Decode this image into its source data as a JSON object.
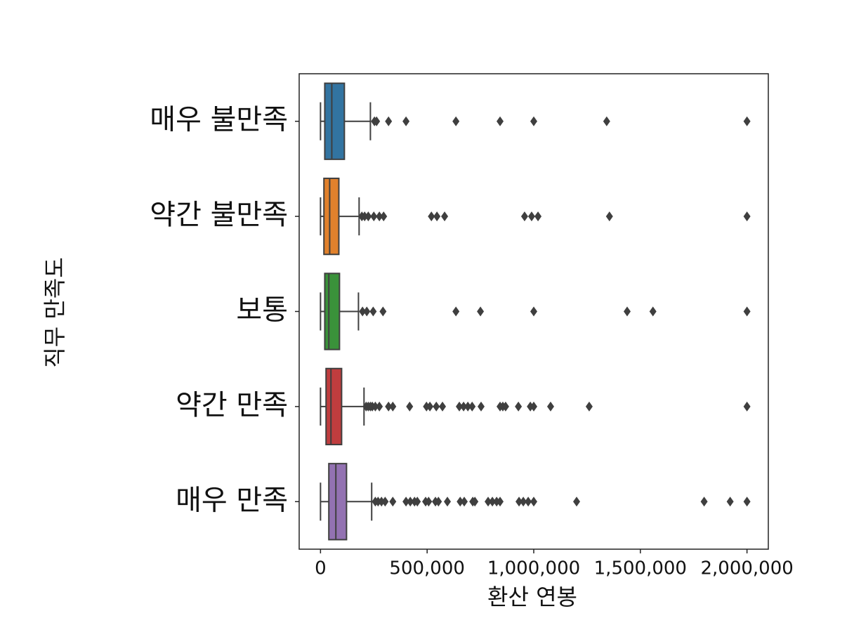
{
  "chart_data": {
    "type": "boxplot",
    "orientation": "horizontal",
    "xlabel": "환산 연봉",
    "ylabel": "직무 만족도",
    "categories": [
      "매우 불만족",
      "약간 불만족",
      "보통",
      "약간 만족",
      "매우 만족"
    ],
    "xlim": [
      -100000,
      2100000
    ],
    "xticks": [
      0,
      {
        "value": 500000,
        "label": "500,000"
      },
      {
        "value": 1000000,
        "label": "1,000,000"
      },
      {
        "value": 1500000,
        "label": "1,500,000"
      },
      {
        "value": 2000000,
        "label": "2,000,000"
      }
    ],
    "boxes": [
      {
        "color": "#3274a1",
        "min": 0,
        "q1": 20000,
        "median": 53000,
        "q3": 112000,
        "max": 234000,
        "outliers": [
          253000,
          263000,
          319000,
          401000,
          635000,
          842000,
          1000000,
          1342000,
          2000000
        ]
      },
      {
        "color": "#e1812c",
        "min": 0,
        "q1": 16000,
        "median": 43000,
        "q3": 86000,
        "max": 181000,
        "outliers": [
          194000,
          207000,
          224000,
          250000,
          276000,
          296000,
          520000,
          546000,
          582000,
          957000,
          990000,
          1020000,
          1355000,
          2000000
        ]
      },
      {
        "color": "#3a923a",
        "min": 0,
        "q1": 20000,
        "median": 39000,
        "q3": 89000,
        "max": 178000,
        "outliers": [
          197000,
          217000,
          247000,
          293000,
          635000,
          750000,
          1000000,
          1438000,
          1559000,
          2000000
        ]
      },
      {
        "color": "#c03d3e",
        "min": 0,
        "q1": 26000,
        "median": 49000,
        "q3": 99000,
        "max": 204000,
        "outliers": [
          214000,
          224000,
          234000,
          243000,
          257000,
          276000,
          319000,
          339000,
          418000,
          497000,
          513000,
          543000,
          572000,
          651000,
          671000,
          691000,
          711000,
          753000,
          842000,
          855000,
          868000,
          928000,
          984000,
          1000000,
          1079000,
          1260000,
          2000000
        ]
      },
      {
        "color": "#9372b2",
        "min": 0,
        "q1": 39000,
        "median": 72000,
        "q3": 122000,
        "max": 240000,
        "outliers": [
          257000,
          270000,
          286000,
          303000,
          339000,
          401000,
          421000,
          441000,
          454000,
          493000,
          507000,
          539000,
          553000,
          595000,
          655000,
          674000,
          714000,
          724000,
          786000,
          806000,
          826000,
          842000,
          931000,
          951000,
          974000,
          1000000,
          1201000,
          1799000,
          1921000,
          2000000
        ]
      }
    ]
  }
}
